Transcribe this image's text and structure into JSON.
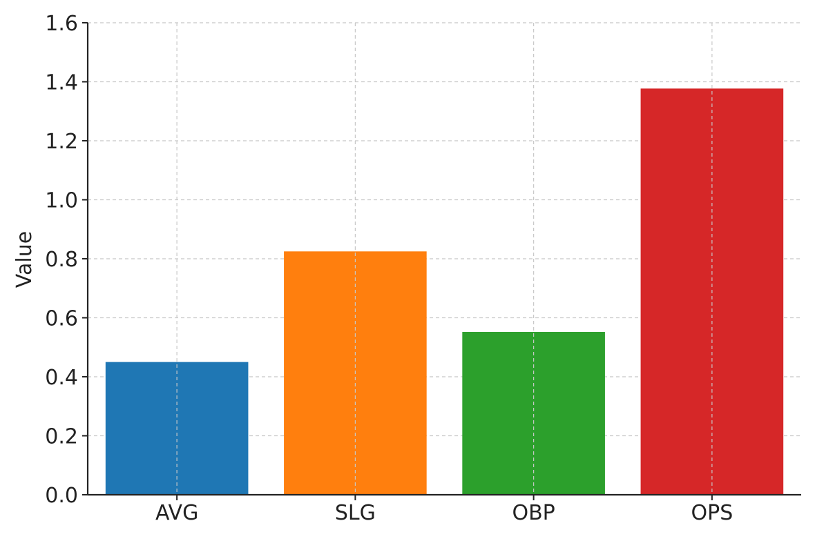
{
  "chart_data": {
    "type": "bar",
    "title": "",
    "xlabel": "",
    "ylabel": "Value",
    "categories": [
      "AVG",
      "SLG",
      "OBP",
      "OPS"
    ],
    "values": [
      0.45,
      0.825,
      0.552,
      1.377
    ],
    "colors": [
      "#1f77b4",
      "#ff7f0e",
      "#2ca02c",
      "#d62728"
    ],
    "ylim": [
      0,
      1.6
    ],
    "yticks": [
      "0.0",
      "0.2",
      "0.4",
      "0.6",
      "0.8",
      "1.0",
      "1.2",
      "1.4",
      "1.6"
    ],
    "grid": true,
    "legend": false
  }
}
